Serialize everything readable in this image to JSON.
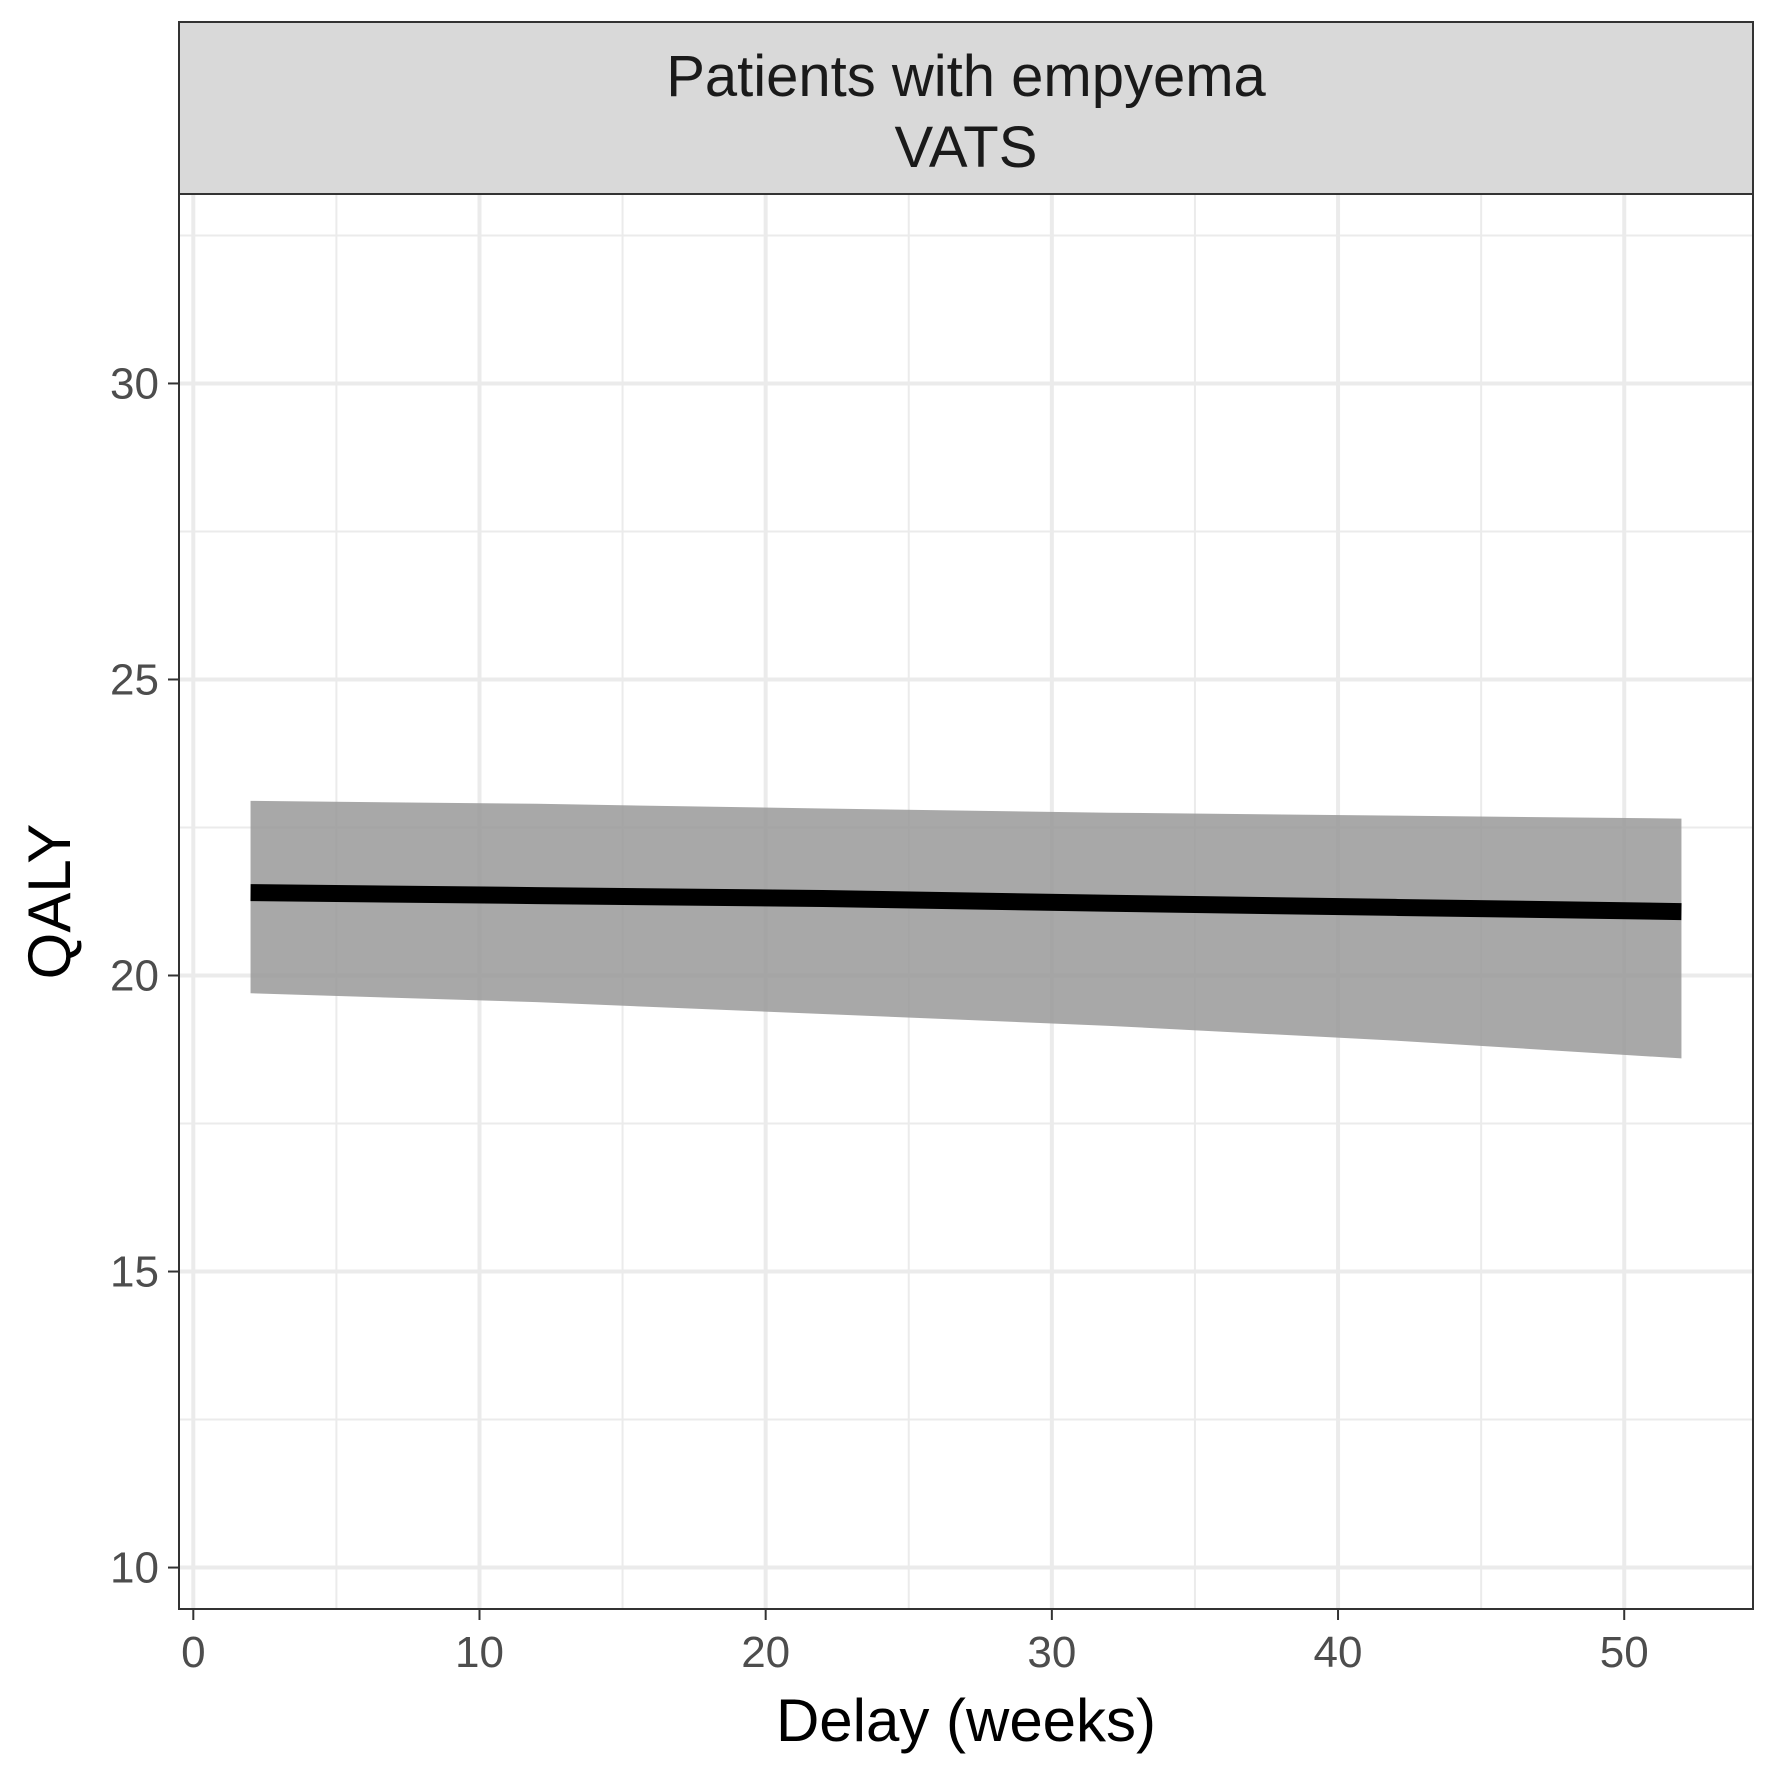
{
  "chart_data": {
    "type": "line",
    "facet_title": [
      "Patients with empyema",
      "VATS"
    ],
    "xlabel": "Delay (weeks)",
    "ylabel": "QALY",
    "xlim": [
      -0.5,
      54.5
    ],
    "ylim": [
      9.3,
      33.2
    ],
    "x_ticks": [
      0,
      10,
      20,
      30,
      40,
      50
    ],
    "y_ticks": [
      10,
      15,
      20,
      25,
      30
    ],
    "x_minor": [
      5,
      15,
      25,
      35,
      45
    ],
    "y_minor": [
      12.5,
      17.5,
      22.5,
      27.5,
      32.5
    ],
    "grid": true,
    "series": [
      {
        "x": [
          2,
          12,
          22,
          32,
          42,
          52
        ],
        "y": [
          21.4,
          21.35,
          21.3,
          21.22,
          21.15,
          21.08
        ],
        "lower": [
          19.7,
          19.55,
          19.35,
          19.15,
          18.9,
          18.6
        ],
        "upper": [
          22.95,
          22.9,
          22.82,
          22.75,
          22.7,
          22.65
        ]
      }
    ],
    "colors": {
      "line": "#000000",
      "ribbon": "#999999",
      "strip_fill": "#d9d9d9",
      "grid": "#ebebeb"
    }
  }
}
